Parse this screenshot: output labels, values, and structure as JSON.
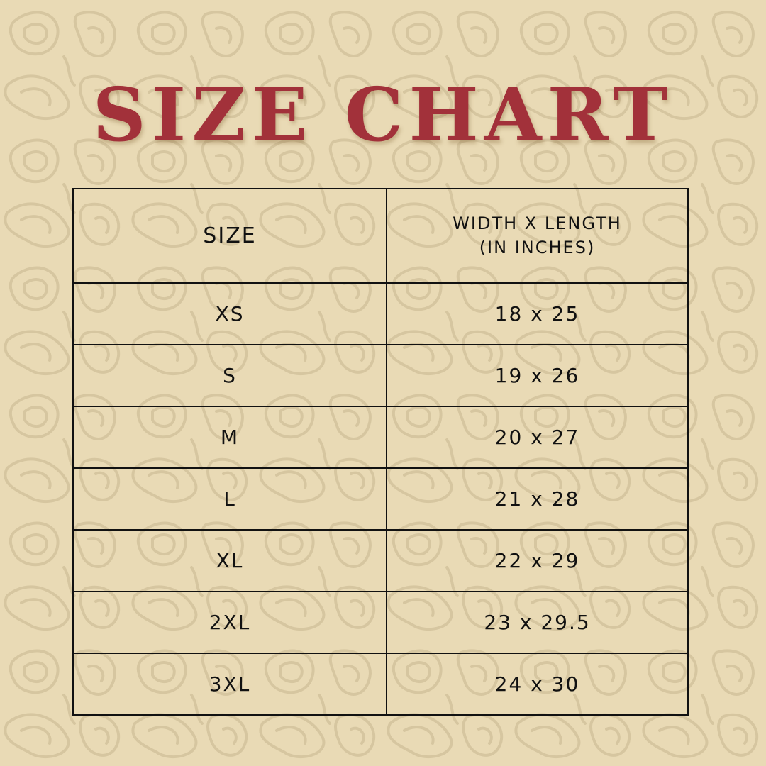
{
  "title": "SIZE CHART",
  "colors": {
    "background": "#e9dab5",
    "pattern": "#d6c6a0",
    "title": "#a2313a",
    "border": "#111111"
  },
  "table": {
    "headers": [
      "SIZE",
      "WIDTH X LENGTH",
      "(IN INCHES)"
    ],
    "rows": [
      {
        "size": "XS",
        "dims": "18 x 25"
      },
      {
        "size": "S",
        "dims": "19 x 26"
      },
      {
        "size": "M",
        "dims": "20 x 27"
      },
      {
        "size": "L",
        "dims": "21 x 28"
      },
      {
        "size": "XL",
        "dims": "22 x 29"
      },
      {
        "size": "2XL",
        "dims": "23 x 29.5"
      },
      {
        "size": "3XL",
        "dims": "24 x 30"
      }
    ]
  }
}
